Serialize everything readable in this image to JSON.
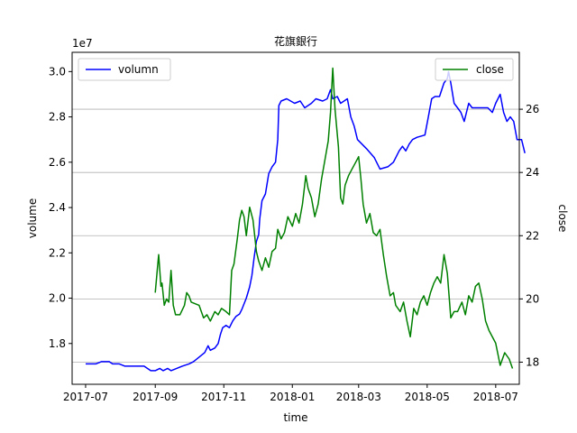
{
  "chart_data": {
    "type": "line",
    "title": "花旗銀行",
    "xlabel": "time",
    "ylabel_left": "volume",
    "ylabel_right": "close",
    "left_offset_text": "1e7",
    "x_range": [
      "2017-06-19",
      "2018-07-22"
    ],
    "x_ticks": [
      "2017-07-01",
      "2017-09-01",
      "2017-11-01",
      "2018-01-01",
      "2018-03-01",
      "2018-05-01",
      "2018-07-01"
    ],
    "x_tick_labels": [
      "2017-07",
      "2017-09",
      "2017-11",
      "2018-01",
      "2018-03",
      "2018-05",
      "2018-07"
    ],
    "ylim_left": [
      1.62,
      3.085
    ],
    "yticks_left": [
      1.8,
      2.0,
      2.2,
      2.4,
      2.6,
      2.8,
      3.0
    ],
    "ylim_right": [
      17.3,
      27.8
    ],
    "yticks_right": [
      18,
      20,
      22,
      24,
      26
    ],
    "grid": "horizontal lines at right-axis ticks",
    "series": [
      {
        "name": "volumn",
        "axis": "left",
        "color": "#0000ff",
        "legend": "top-left",
        "points": [
          [
            "2017-07-01",
            1.71
          ],
          [
            "2017-07-10",
            1.71
          ],
          [
            "2017-07-15",
            1.72
          ],
          [
            "2017-07-22",
            1.72
          ],
          [
            "2017-07-25",
            1.71
          ],
          [
            "2017-07-31",
            1.71
          ],
          [
            "2017-08-05",
            1.7
          ],
          [
            "2017-08-15",
            1.7
          ],
          [
            "2017-08-22",
            1.7
          ],
          [
            "2017-08-28",
            1.68
          ],
          [
            "2017-09-01",
            1.68
          ],
          [
            "2017-09-05",
            1.69
          ],
          [
            "2017-09-08",
            1.68
          ],
          [
            "2017-09-12",
            1.69
          ],
          [
            "2017-09-15",
            1.68
          ],
          [
            "2017-09-20",
            1.69
          ],
          [
            "2017-09-25",
            1.7
          ],
          [
            "2017-10-01",
            1.71
          ],
          [
            "2017-10-05",
            1.72
          ],
          [
            "2017-10-10",
            1.74
          ],
          [
            "2017-10-15",
            1.76
          ],
          [
            "2017-10-18",
            1.79
          ],
          [
            "2017-10-20",
            1.77
          ],
          [
            "2017-10-24",
            1.78
          ],
          [
            "2017-10-27",
            1.8
          ],
          [
            "2017-10-29",
            1.84
          ],
          [
            "2017-10-31",
            1.87
          ],
          [
            "2017-11-03",
            1.88
          ],
          [
            "2017-11-06",
            1.87
          ],
          [
            "2017-11-09",
            1.9
          ],
          [
            "2017-11-12",
            1.92
          ],
          [
            "2017-11-15",
            1.93
          ],
          [
            "2017-11-17",
            1.95
          ],
          [
            "2017-11-21",
            2.0
          ],
          [
            "2017-11-24",
            2.05
          ],
          [
            "2017-11-26",
            2.1
          ],
          [
            "2017-11-28",
            2.18
          ],
          [
            "2017-11-30",
            2.25
          ],
          [
            "2017-12-02",
            2.28
          ],
          [
            "2017-12-03",
            2.35
          ],
          [
            "2017-12-05",
            2.43
          ],
          [
            "2017-12-08",
            2.46
          ],
          [
            "2017-12-11",
            2.55
          ],
          [
            "2017-12-14",
            2.58
          ],
          [
            "2017-12-17",
            2.6
          ],
          [
            "2017-12-19",
            2.7
          ],
          [
            "2017-12-20",
            2.85
          ],
          [
            "2017-12-22",
            2.87
          ],
          [
            "2017-12-27",
            2.88
          ],
          [
            "2018-01-03",
            2.86
          ],
          [
            "2018-01-08",
            2.87
          ],
          [
            "2018-01-12",
            2.84
          ],
          [
            "2018-01-18",
            2.86
          ],
          [
            "2018-01-22",
            2.88
          ],
          [
            "2018-01-28",
            2.87
          ],
          [
            "2018-02-01",
            2.88
          ],
          [
            "2018-02-04",
            2.92
          ],
          [
            "2018-02-06",
            2.88
          ],
          [
            "2018-02-10",
            2.89
          ],
          [
            "2018-02-13",
            2.86
          ],
          [
            "2018-02-16",
            2.87
          ],
          [
            "2018-02-19",
            2.88
          ],
          [
            "2018-02-22",
            2.8
          ],
          [
            "2018-02-25",
            2.76
          ],
          [
            "2018-02-28",
            2.7
          ],
          [
            "2018-03-08",
            2.66
          ],
          [
            "2018-03-15",
            2.62
          ],
          [
            "2018-03-20",
            2.57
          ],
          [
            "2018-03-27",
            2.58
          ],
          [
            "2018-04-01",
            2.6
          ],
          [
            "2018-04-06",
            2.65
          ],
          [
            "2018-04-09",
            2.67
          ],
          [
            "2018-04-12",
            2.65
          ],
          [
            "2018-04-15",
            2.68
          ],
          [
            "2018-04-18",
            2.7
          ],
          [
            "2018-04-22",
            2.71
          ],
          [
            "2018-04-29",
            2.72
          ],
          [
            "2018-05-02",
            2.8
          ],
          [
            "2018-05-05",
            2.88
          ],
          [
            "2018-05-08",
            2.89
          ],
          [
            "2018-05-12",
            2.89
          ],
          [
            "2018-05-14",
            2.92
          ],
          [
            "2018-05-16",
            2.95
          ],
          [
            "2018-05-19",
            2.97
          ],
          [
            "2018-05-20",
            3.0
          ],
          [
            "2018-05-22",
            2.95
          ],
          [
            "2018-05-25",
            2.86
          ],
          [
            "2018-05-28",
            2.84
          ],
          [
            "2018-05-31",
            2.82
          ],
          [
            "2018-06-03",
            2.78
          ],
          [
            "2018-06-07",
            2.86
          ],
          [
            "2018-06-10",
            2.84
          ],
          [
            "2018-06-17",
            2.84
          ],
          [
            "2018-06-24",
            2.84
          ],
          [
            "2018-06-28",
            2.82
          ],
          [
            "2018-07-01",
            2.86
          ],
          [
            "2018-07-05",
            2.9
          ],
          [
            "2018-07-08",
            2.82
          ],
          [
            "2018-07-11",
            2.78
          ],
          [
            "2018-07-14",
            2.8
          ],
          [
            "2018-07-17",
            2.78
          ],
          [
            "2018-07-20",
            2.7
          ],
          [
            "2018-07-24",
            2.7
          ],
          [
            "2018-07-27",
            2.64
          ]
        ]
      },
      {
        "name": "close",
        "axis": "right",
        "color": "#008000",
        "legend": "top-right",
        "points": [
          [
            "2017-09-01",
            20.2
          ],
          [
            "2017-09-03",
            21.0
          ],
          [
            "2017-09-04",
            21.4
          ],
          [
            "2017-09-06",
            20.4
          ],
          [
            "2017-09-07",
            20.5
          ],
          [
            "2017-09-09",
            19.8
          ],
          [
            "2017-09-11",
            20.0
          ],
          [
            "2017-09-13",
            19.9
          ],
          [
            "2017-09-15",
            20.9
          ],
          [
            "2017-09-17",
            19.8
          ],
          [
            "2017-09-19",
            19.5
          ],
          [
            "2017-09-23",
            19.5
          ],
          [
            "2017-09-27",
            19.8
          ],
          [
            "2017-09-29",
            20.2
          ],
          [
            "2017-10-01",
            20.1
          ],
          [
            "2017-10-03",
            19.9
          ],
          [
            "2017-10-10",
            19.8
          ],
          [
            "2017-10-14",
            19.4
          ],
          [
            "2017-10-17",
            19.5
          ],
          [
            "2017-10-20",
            19.3
          ],
          [
            "2017-10-24",
            19.6
          ],
          [
            "2017-10-27",
            19.5
          ],
          [
            "2017-10-30",
            19.7
          ],
          [
            "2017-11-03",
            19.6
          ],
          [
            "2017-11-06",
            19.5
          ],
          [
            "2017-11-08",
            20.9
          ],
          [
            "2017-11-10",
            21.1
          ],
          [
            "2017-11-13",
            21.9
          ],
          [
            "2017-11-15",
            22.5
          ],
          [
            "2017-11-17",
            22.8
          ],
          [
            "2017-11-19",
            22.6
          ],
          [
            "2017-11-21",
            22.0
          ],
          [
            "2017-11-24",
            22.9
          ],
          [
            "2017-11-27",
            22.5
          ],
          [
            "2017-11-30",
            21.5
          ],
          [
            "2017-12-02",
            21.2
          ],
          [
            "2017-12-05",
            20.9
          ],
          [
            "2017-12-08",
            21.3
          ],
          [
            "2017-12-11",
            21.0
          ],
          [
            "2017-12-14",
            21.5
          ],
          [
            "2017-12-17",
            21.6
          ],
          [
            "2017-12-19",
            22.2
          ],
          [
            "2017-12-22",
            21.9
          ],
          [
            "2017-12-25",
            22.1
          ],
          [
            "2017-12-28",
            22.6
          ],
          [
            "2018-01-01",
            22.3
          ],
          [
            "2018-01-04",
            22.7
          ],
          [
            "2018-01-07",
            22.4
          ],
          [
            "2018-01-10",
            23.0
          ],
          [
            "2018-01-13",
            23.9
          ],
          [
            "2018-01-15",
            23.5
          ],
          [
            "2018-01-18",
            23.2
          ],
          [
            "2018-01-21",
            22.6
          ],
          [
            "2018-01-24",
            23.0
          ],
          [
            "2018-01-27",
            23.8
          ],
          [
            "2018-01-30",
            24.4
          ],
          [
            "2018-02-02",
            25.0
          ],
          [
            "2018-02-04",
            25.9
          ],
          [
            "2018-02-06",
            27.3
          ],
          [
            "2018-02-08",
            26.0
          ],
          [
            "2018-02-11",
            24.8
          ],
          [
            "2018-02-13",
            23.2
          ],
          [
            "2018-02-15",
            23.0
          ],
          [
            "2018-02-17",
            23.6
          ],
          [
            "2018-02-20",
            23.9
          ],
          [
            "2018-02-23",
            24.1
          ],
          [
            "2018-02-26",
            24.3
          ],
          [
            "2018-03-01",
            24.5
          ],
          [
            "2018-03-03",
            23.8
          ],
          [
            "2018-03-05",
            23.0
          ],
          [
            "2018-03-08",
            22.4
          ],
          [
            "2018-03-11",
            22.7
          ],
          [
            "2018-03-14",
            22.1
          ],
          [
            "2018-03-17",
            22.0
          ],
          [
            "2018-03-20",
            22.2
          ],
          [
            "2018-03-23",
            21.4
          ],
          [
            "2018-03-26",
            20.7
          ],
          [
            "2018-03-29",
            20.1
          ],
          [
            "2018-04-01",
            20.2
          ],
          [
            "2018-04-03",
            19.8
          ],
          [
            "2018-04-07",
            19.6
          ],
          [
            "2018-04-10",
            19.9
          ],
          [
            "2018-04-13",
            19.3
          ],
          [
            "2018-04-16",
            18.8
          ],
          [
            "2018-04-19",
            19.7
          ],
          [
            "2018-04-22",
            19.5
          ],
          [
            "2018-04-25",
            19.9
          ],
          [
            "2018-04-28",
            20.1
          ],
          [
            "2018-05-01",
            19.8
          ],
          [
            "2018-05-04",
            20.2
          ],
          [
            "2018-05-07",
            20.5
          ],
          [
            "2018-05-10",
            20.7
          ],
          [
            "2018-05-13",
            20.5
          ],
          [
            "2018-05-16",
            21.4
          ],
          [
            "2018-05-19",
            20.8
          ],
          [
            "2018-05-22",
            19.4
          ],
          [
            "2018-05-25",
            19.6
          ],
          [
            "2018-05-28",
            19.6
          ],
          [
            "2018-06-01",
            19.9
          ],
          [
            "2018-06-04",
            19.5
          ],
          [
            "2018-06-07",
            20.1
          ],
          [
            "2018-06-10",
            19.9
          ],
          [
            "2018-06-13",
            20.4
          ],
          [
            "2018-06-16",
            20.5
          ],
          [
            "2018-06-19",
            20.0
          ],
          [
            "2018-06-22",
            19.3
          ],
          [
            "2018-06-25",
            19.0
          ],
          [
            "2018-06-28",
            18.8
          ],
          [
            "2018-07-01",
            18.6
          ],
          [
            "2018-07-05",
            17.9
          ],
          [
            "2018-07-09",
            18.3
          ],
          [
            "2018-07-13",
            18.1
          ],
          [
            "2018-07-16",
            17.8
          ]
        ]
      }
    ]
  }
}
